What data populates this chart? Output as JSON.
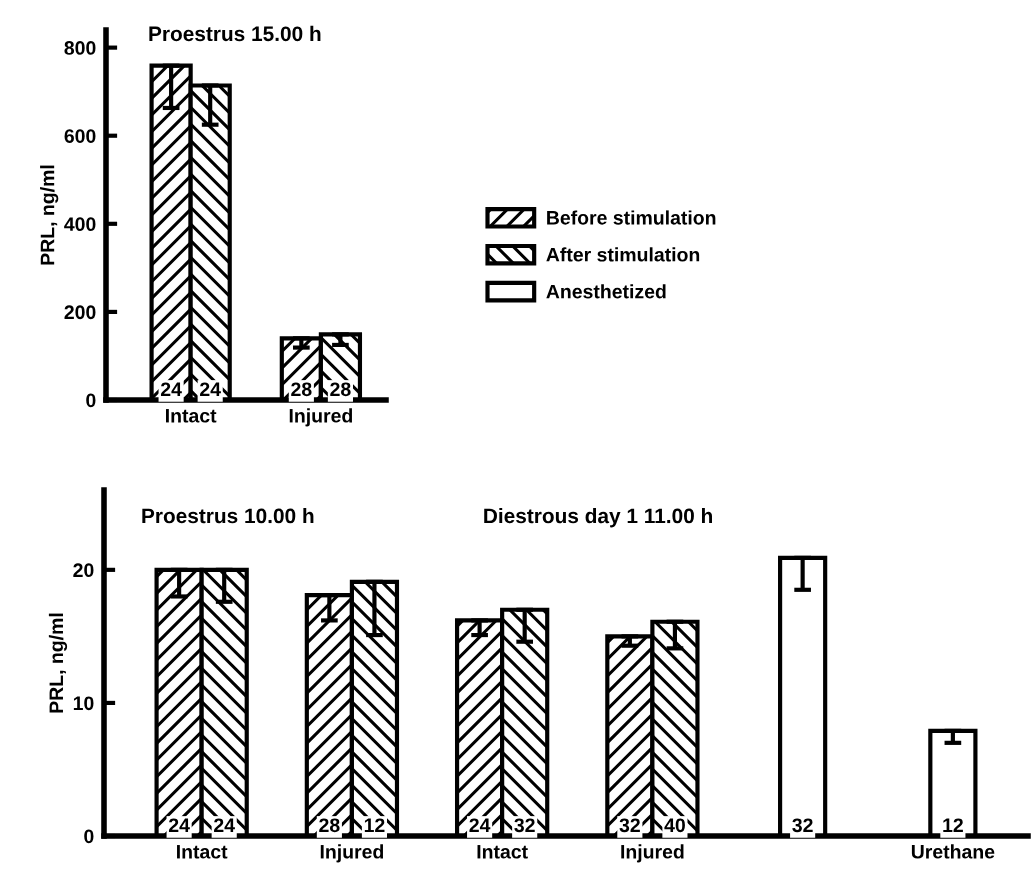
{
  "chart_data": [
    {
      "type": "bar",
      "title": "Proestrus 15.00 h",
      "ylabel": "PRL, ng/ml",
      "categories": [
        "Intact",
        "Injured"
      ],
      "series": [
        {
          "name": "Before stimulation",
          "color": "#000000",
          "values": [
            759,
            140
          ],
          "errors": [
            [
              663,
              759
            ],
            [
              119,
              140
            ]
          ]
        },
        {
          "name": "After stimulation",
          "color": "#000000",
          "values": [
            714,
            149
          ],
          "errors": [
            [
              625,
              714
            ],
            [
              125,
              149
            ]
          ]
        }
      ],
      "annotations": [
        {
          "text": "24",
          "x": "Intact",
          "y": 0
        },
        {
          "text": "24",
          "x": "Intact",
          "y": 0
        },
        {
          "text": "28",
          "x": "Injured",
          "y": 0
        },
        {
          "text": "28",
          "x": "Injured",
          "y": 0
        }
      ],
      "ylim": [
        0,
        840
      ],
      "yticks": [
        0,
        200,
        400,
        600,
        800
      ],
      "legend": "right"
    },
    {
      "type": "bar",
      "title": "Proestrus 10.00 h",
      "subtitle": "Diestrous day 1 11.00 h",
      "ylabel": "PRL, ng/ml",
      "categories": [
        "Intact",
        "Injured",
        "Intact",
        "Injured",
        null,
        "Urethane"
      ],
      "series": [
        {
          "color": "#000000",
          "values": [
            20,
            18.1,
            16.2,
            15.0,
            null,
            null
          ],
          "errors": [
            [
              18.0,
              20
            ],
            [
              16.2,
              18.1
            ],
            [
              15.1,
              16.2
            ],
            [
              14.3,
              15.0
            ],
            null,
            null
          ]
        },
        {
          "color": "#000000",
          "values": [
            20,
            19.1,
            17.0,
            16.1,
            null,
            null
          ],
          "errors": [
            [
              17.6,
              20
            ],
            [
              15.1,
              19.1
            ],
            [
              14.6,
              17.0
            ],
            [
              14.1,
              16.1
            ],
            null,
            null
          ]
        },
        {
          "name": "Anesthetized",
          "color": "#ffffff",
          "values": [
            null,
            null,
            null,
            null,
            20.9,
            7.9
          ],
          "errors": [
            null,
            null,
            null,
            null,
            [
              18.5,
              20.9
            ],
            [
              7.0,
              7.9
            ]
          ]
        }
      ],
      "annotations": [
        "24",
        "24",
        "28",
        "12",
        "24",
        "32",
        "32",
        "40",
        "32",
        "12"
      ],
      "ylim": [
        0,
        26
      ],
      "yticks": [
        0,
        10,
        20
      ]
    }
  ]
}
